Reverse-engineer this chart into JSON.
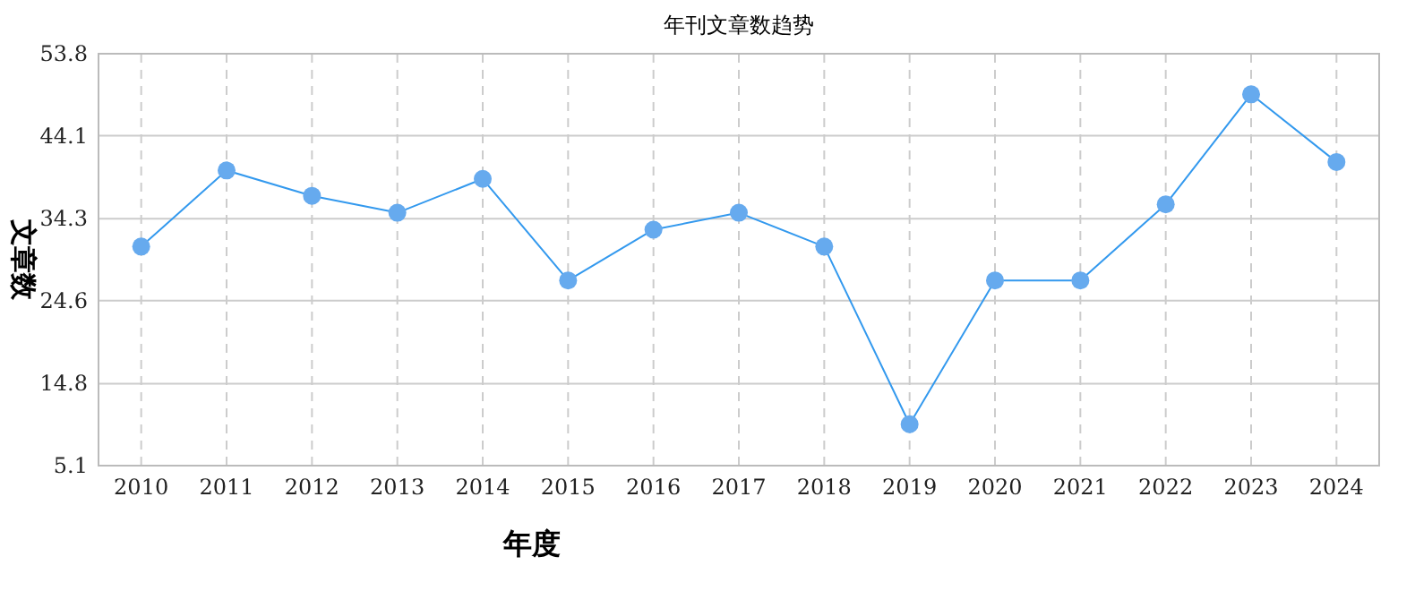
{
  "chart_data": {
    "type": "line",
    "title": "年刊文章数趋势",
    "xlabel": "年度",
    "ylabel": "文章数",
    "categories": [
      "2010",
      "2011",
      "2012",
      "2013",
      "2014",
      "2015",
      "2016",
      "2017",
      "2018",
      "2019",
      "2020",
      "2021",
      "2022",
      "2023",
      "2024"
    ],
    "series": [
      {
        "color": "#3399ee",
        "values": [
          31,
          40,
          37,
          35,
          39,
          27,
          33,
          35,
          31,
          10,
          27,
          27,
          36,
          49,
          41
        ]
      }
    ],
    "ylim": [
      5.1,
      53.8
    ],
    "yticks": [
      5.1,
      14.8,
      24.6,
      34.3,
      44.1,
      53.8
    ],
    "grid": true,
    "marker": "circle",
    "line_style": "solid"
  }
}
